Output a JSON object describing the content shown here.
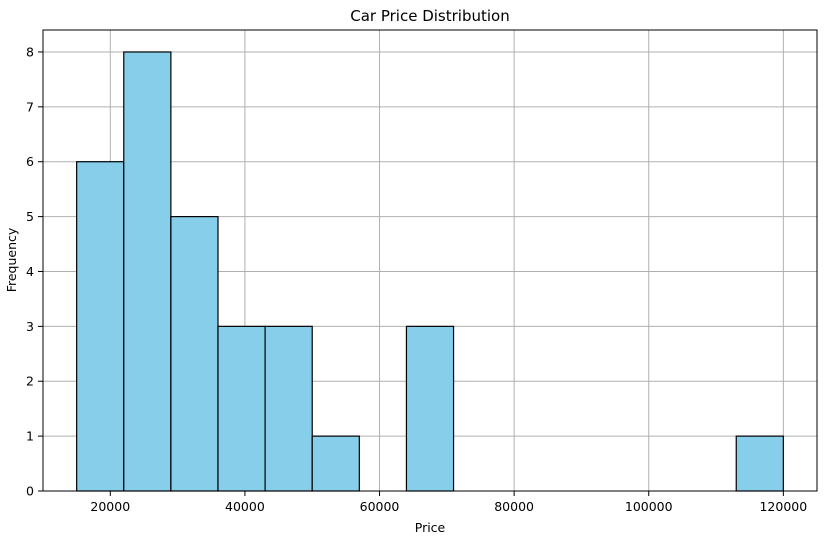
{
  "chart_data": {
    "type": "bar",
    "title": "Car Price Distribution",
    "xlabel": "Price",
    "ylabel": "Frequency",
    "bin_edges": [
      15000,
      22000,
      29000,
      36000,
      43000,
      50000,
      57000,
      64000,
      71000,
      78000,
      85000,
      92000,
      99000,
      106000,
      113000,
      120000
    ],
    "values": [
      6,
      8,
      5,
      3,
      3,
      1,
      0,
      3,
      0,
      0,
      0,
      0,
      0,
      0,
      1
    ],
    "xlim": [
      10000,
      125000
    ],
    "ylim": [
      0,
      8.4
    ],
    "xticks": [
      20000,
      40000,
      60000,
      80000,
      100000,
      120000
    ],
    "xtick_labels": [
      "20000",
      "40000",
      "60000",
      "80000",
      "100000",
      "120000"
    ],
    "yticks": [
      0,
      1,
      2,
      3,
      4,
      5,
      6,
      7,
      8
    ],
    "ytick_labels": [
      "0",
      "1",
      "2",
      "3",
      "4",
      "5",
      "6",
      "7",
      "8"
    ],
    "grid": true,
    "colors": {
      "bar_fill": "#87CEEB",
      "bar_edge": "#000000",
      "grid": "#b0b0b0"
    }
  }
}
